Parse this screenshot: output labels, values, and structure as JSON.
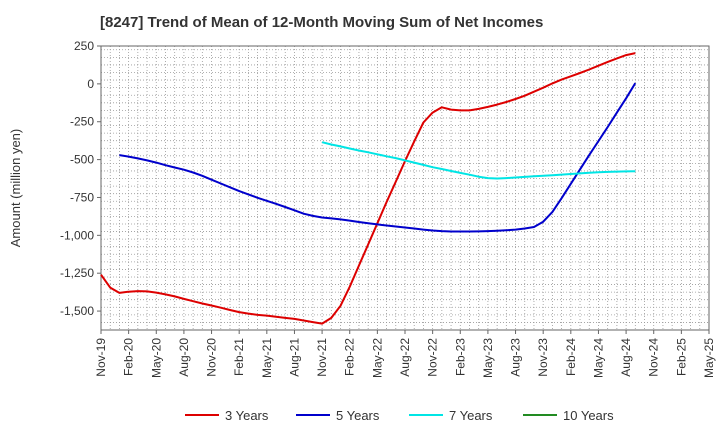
{
  "chart_data": {
    "type": "line",
    "title": "[8247]  Trend of Mean of 12-Month Moving Sum of Net Incomes",
    "xlabel": "",
    "ylabel": "Amount (million yen)",
    "ylim": [
      -1625,
      250
    ],
    "yticks": [
      250,
      0,
      -250,
      -500,
      -750,
      -1000,
      -1250,
      -1500
    ],
    "ytick_labels": [
      "250",
      "0",
      "-250",
      "-500",
      "-750",
      "-1,000",
      "-1,250",
      "-1,500"
    ],
    "xticks": [
      "Nov-19",
      "Feb-20",
      "May-20",
      "Aug-20",
      "Nov-20",
      "Feb-21",
      "May-21",
      "Aug-21",
      "Nov-21",
      "Feb-22",
      "May-22",
      "Aug-22",
      "Nov-22",
      "Feb-23",
      "May-23",
      "Aug-23",
      "Nov-23",
      "Feb-24",
      "May-24",
      "Aug-24",
      "Nov-24",
      "Feb-25",
      "May-25"
    ],
    "grid": true,
    "legend_position": "bottom",
    "series": [
      {
        "name": "3 Years",
        "color": "#dd0000",
        "points": [
          [
            "Nov-19",
            -1260
          ],
          [
            "Dec-19",
            -1345
          ],
          [
            "Jan-20",
            -1380
          ],
          [
            "Feb-20",
            -1372
          ],
          [
            "Mar-20",
            -1368
          ],
          [
            "Apr-20",
            -1370
          ],
          [
            "May-20",
            -1378
          ],
          [
            "Jun-20",
            -1390
          ],
          [
            "Jul-20",
            -1403
          ],
          [
            "Aug-20",
            -1420
          ],
          [
            "Sep-20",
            -1435
          ],
          [
            "Oct-20",
            -1450
          ],
          [
            "Nov-20",
            -1463
          ],
          [
            "Dec-20",
            -1478
          ],
          [
            "Jan-21",
            -1493
          ],
          [
            "Feb-21",
            -1507
          ],
          [
            "Mar-21",
            -1517
          ],
          [
            "Apr-21",
            -1525
          ],
          [
            "May-21",
            -1530
          ],
          [
            "Jun-21",
            -1537
          ],
          [
            "Jul-21",
            -1545
          ],
          [
            "Aug-21",
            -1552
          ],
          [
            "Sep-21",
            -1562
          ],
          [
            "Oct-21",
            -1573
          ],
          [
            "Nov-21",
            -1583
          ],
          [
            "Dec-21",
            -1545
          ],
          [
            "Jan-22",
            -1465
          ],
          [
            "Feb-22",
            -1340
          ],
          [
            "Mar-22",
            -1200
          ],
          [
            "Apr-22",
            -1060
          ],
          [
            "May-22",
            -920
          ],
          [
            "Jun-22",
            -780
          ],
          [
            "Jul-22",
            -645
          ],
          [
            "Aug-22",
            -510
          ],
          [
            "Sep-22",
            -380
          ],
          [
            "Oct-22",
            -255
          ],
          [
            "Nov-22",
            -190
          ],
          [
            "Dec-22",
            -155
          ],
          [
            "Jan-23",
            -170
          ],
          [
            "Feb-23",
            -175
          ],
          [
            "Mar-23",
            -175
          ],
          [
            "Apr-23",
            -165
          ],
          [
            "May-23",
            -152
          ],
          [
            "Jun-23",
            -137
          ],
          [
            "Jul-23",
            -120
          ],
          [
            "Aug-23",
            -100
          ],
          [
            "Sep-23",
            -78
          ],
          [
            "Oct-23",
            -52
          ],
          [
            "Nov-23",
            -25
          ],
          [
            "Dec-23",
            3
          ],
          [
            "Jan-24",
            28
          ],
          [
            "Feb-24",
            50
          ],
          [
            "Mar-24",
            72
          ],
          [
            "Apr-24",
            95
          ],
          [
            "May-24",
            120
          ],
          [
            "Jun-24",
            145
          ],
          [
            "Jul-24",
            168
          ],
          [
            "Aug-24",
            190
          ],
          [
            "Sep-24",
            203
          ]
        ]
      },
      {
        "name": "5 Years",
        "color": "#0000cc",
        "points": [
          [
            "Jan-20",
            -470
          ],
          [
            "Feb-20",
            -480
          ],
          [
            "Mar-20",
            -492
          ],
          [
            "Apr-20",
            -505
          ],
          [
            "May-20",
            -520
          ],
          [
            "Jun-20",
            -537
          ],
          [
            "Jul-20",
            -552
          ],
          [
            "Aug-20",
            -567
          ],
          [
            "Sep-20",
            -585
          ],
          [
            "Oct-20",
            -607
          ],
          [
            "Nov-20",
            -633
          ],
          [
            "Dec-20",
            -658
          ],
          [
            "Jan-21",
            -683
          ],
          [
            "Feb-21",
            -708
          ],
          [
            "Mar-21",
            -730
          ],
          [
            "Apr-21",
            -752
          ],
          [
            "May-21",
            -772
          ],
          [
            "Jun-21",
            -792
          ],
          [
            "Jul-21",
            -813
          ],
          [
            "Aug-21",
            -835
          ],
          [
            "Sep-21",
            -857
          ],
          [
            "Oct-21",
            -872
          ],
          [
            "Nov-21",
            -882
          ],
          [
            "Dec-21",
            -888
          ],
          [
            "Jan-22",
            -895
          ],
          [
            "Feb-22",
            -903
          ],
          [
            "Mar-22",
            -912
          ],
          [
            "Apr-22",
            -920
          ],
          [
            "May-22",
            -928
          ],
          [
            "Jun-22",
            -935
          ],
          [
            "Jul-22",
            -942
          ],
          [
            "Aug-22",
            -948
          ],
          [
            "Sep-22",
            -955
          ],
          [
            "Oct-22",
            -962
          ],
          [
            "Nov-22",
            -968
          ],
          [
            "Dec-22",
            -972
          ],
          [
            "Jan-23",
            -975
          ],
          [
            "Feb-23",
            -975
          ],
          [
            "Mar-23",
            -975
          ],
          [
            "Apr-23",
            -974
          ],
          [
            "May-23",
            -972
          ],
          [
            "Jun-23",
            -970
          ],
          [
            "Jul-23",
            -967
          ],
          [
            "Aug-23",
            -962
          ],
          [
            "Sep-23",
            -955
          ],
          [
            "Oct-23",
            -945
          ],
          [
            "Nov-23",
            -910
          ],
          [
            "Dec-23",
            -845
          ],
          [
            "Jan-24",
            -755
          ],
          [
            "Feb-24",
            -660
          ],
          [
            "Mar-24",
            -565
          ],
          [
            "Apr-24",
            -470
          ],
          [
            "May-24",
            -377
          ],
          [
            "Jun-24",
            -285
          ],
          [
            "Jul-24",
            -190
          ],
          [
            "Aug-24",
            -95
          ],
          [
            "Sep-24",
            5
          ]
        ]
      },
      {
        "name": "7 Years",
        "color": "#00e5e5",
        "points": [
          [
            "Nov-21",
            -385
          ],
          [
            "Dec-21",
            -400
          ],
          [
            "Jan-22",
            -413
          ],
          [
            "Feb-22",
            -427
          ],
          [
            "Mar-22",
            -440
          ],
          [
            "Apr-22",
            -452
          ],
          [
            "May-22",
            -465
          ],
          [
            "Jun-22",
            -478
          ],
          [
            "Jul-22",
            -490
          ],
          [
            "Aug-22",
            -505
          ],
          [
            "Sep-22",
            -520
          ],
          [
            "Oct-22",
            -535
          ],
          [
            "Nov-22",
            -550
          ],
          [
            "Dec-22",
            -562
          ],
          [
            "Jan-23",
            -575
          ],
          [
            "Feb-23",
            -588
          ],
          [
            "Mar-23",
            -600
          ],
          [
            "Apr-23",
            -613
          ],
          [
            "May-23",
            -622
          ],
          [
            "Jun-23",
            -625
          ],
          [
            "Jul-23",
            -622
          ],
          [
            "Aug-23",
            -618
          ],
          [
            "Sep-23",
            -614
          ],
          [
            "Oct-23",
            -610
          ],
          [
            "Nov-23",
            -606
          ],
          [
            "Dec-23",
            -603
          ],
          [
            "Jan-24",
            -599
          ],
          [
            "Feb-24",
            -595
          ],
          [
            "Mar-24",
            -591
          ],
          [
            "Apr-24",
            -587
          ],
          [
            "May-24",
            -584
          ],
          [
            "Jun-24",
            -581
          ],
          [
            "Jul-24",
            -579
          ],
          [
            "Aug-24",
            -578
          ],
          [
            "Sep-24",
            -577
          ]
        ]
      },
      {
        "name": "10 Years",
        "color": "#228b22",
        "points": []
      }
    ]
  }
}
